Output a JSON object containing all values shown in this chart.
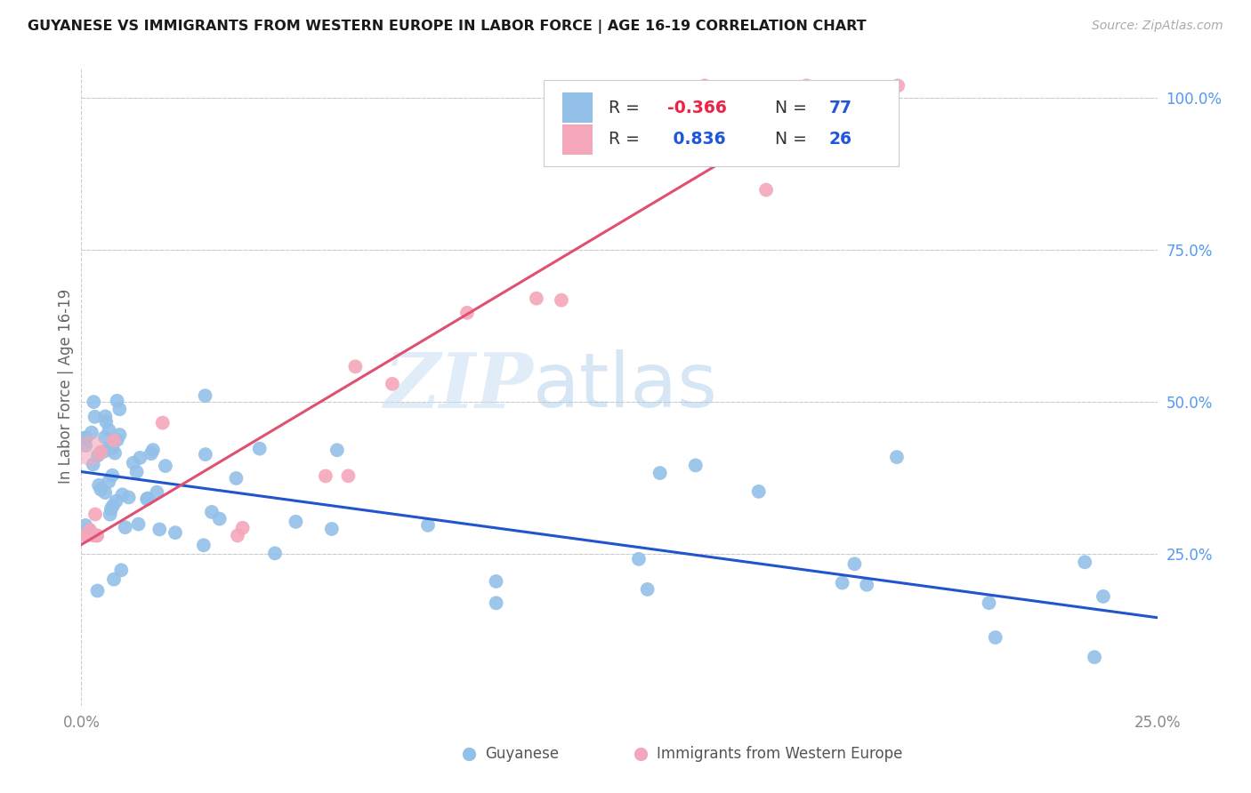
{
  "title": "GUYANESE VS IMMIGRANTS FROM WESTERN EUROPE IN LABOR FORCE | AGE 16-19 CORRELATION CHART",
  "source": "Source: ZipAtlas.com",
  "ylabel": "In Labor Force | Age 16-19",
  "xlim": [
    0.0,
    0.25
  ],
  "ylim": [
    0.0,
    1.05
  ],
  "color_blue": "#92C0E8",
  "color_pink": "#F4A7BB",
  "line_blue": "#2255CC",
  "line_pink": "#E05070",
  "watermark_zip": "ZIP",
  "watermark_atlas": "atlas",
  "background": "#FFFFFF",
  "grid_color": "#CCCCCC",
  "r1": "-0.366",
  "n1": "77",
  "r2": "0.836",
  "n2": "26",
  "r_color_neg": "#EE2244",
  "r_color_pos": "#2255DD",
  "n_color": "#2255DD",
  "label_color": "#888888",
  "blue_line_x0": 0.0,
  "blue_line_x1": 0.25,
  "blue_line_y0": 0.385,
  "blue_line_y1": 0.145,
  "pink_line_x0": 0.0,
  "pink_line_x1": 0.175,
  "pink_line_y0": 0.265,
  "pink_line_y1": 1.005
}
